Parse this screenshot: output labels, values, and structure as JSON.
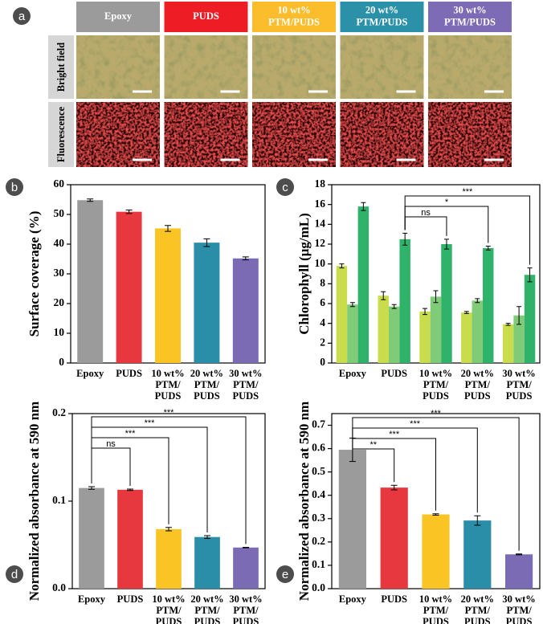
{
  "figure_a": {
    "label": "a",
    "columns": [
      {
        "lines": [
          "Epoxy"
        ],
        "color": "#9b9b9b"
      },
      {
        "lines": [
          "PUDS"
        ],
        "color": "#ee1c25"
      },
      {
        "lines": [
          "10 wt%",
          "PTM/PUDS"
        ],
        "color": "#fbbd2c"
      },
      {
        "lines": [
          "20 wt%",
          "PTM/PUDS"
        ],
        "color": "#2a91a8"
      },
      {
        "lines": [
          "30 wt%",
          "PTM/PUDS"
        ],
        "color": "#7d6bb5"
      }
    ],
    "rows": [
      "Bright field",
      "Fluorescence"
    ]
  },
  "chart_data": [
    {
      "type": "bar",
      "label": "b",
      "y_label": "Surface coverage (%)",
      "categories": [
        [
          "Epoxy"
        ],
        [
          "PUDS"
        ],
        [
          "10 wt%",
          "PTM/",
          "PUDS"
        ],
        [
          "20 wt%",
          "PTM/",
          "PUDS"
        ],
        [
          "30 wt%",
          "PTM/",
          "PUDS"
        ]
      ],
      "values": [
        54.8,
        50.9,
        45.3,
        40.5,
        35.2
      ],
      "errors": [
        0.4,
        0.6,
        1.0,
        1.3,
        0.5
      ],
      "colors": [
        "#9b9b9b",
        "#e8383f",
        "#fbc425",
        "#2a8ea8",
        "#7b6bb5"
      ],
      "ylim": [
        0,
        60
      ],
      "yticks": [
        0,
        10,
        20,
        30,
        40,
        50,
        60
      ]
    },
    {
      "type": "grouped_bar",
      "label": "c",
      "y_label": "Chlorophyll (μg/mL)",
      "categories": [
        [
          "Epoxy"
        ],
        [
          "PUDS"
        ],
        [
          "10 wt%",
          "PTM/",
          "PUDS"
        ],
        [
          "20 wt%",
          "PTM/",
          "PUDS"
        ],
        [
          "30 wt%",
          "PTM/",
          "PUDS"
        ]
      ],
      "series": [
        {
          "color": "#c9dc4c",
          "values": [
            9.8,
            6.8,
            5.2,
            5.1,
            3.9
          ],
          "errors": [
            0.2,
            0.4,
            0.3,
            0.1,
            0.1
          ]
        },
        {
          "color": "#7fcb78",
          "values": [
            5.9,
            5.7,
            6.7,
            6.3,
            4.8
          ],
          "errors": [
            0.2,
            0.2,
            0.6,
            0.2,
            0.9
          ]
        },
        {
          "color": "#2fb36a",
          "values": [
            15.8,
            12.5,
            12.0,
            11.6,
            8.9
          ],
          "errors": [
            0.4,
            0.6,
            0.5,
            0.2,
            0.7
          ]
        }
      ],
      "ylim": [
        0,
        18
      ],
      "yticks": [
        0,
        2,
        4,
        6,
        8,
        10,
        12,
        14,
        16,
        18
      ],
      "significance": [
        {
          "from": 1,
          "to": 2,
          "label": "ns"
        },
        {
          "from": 1,
          "to": 3,
          "label": "*"
        },
        {
          "from": 1,
          "to": 4,
          "label": "***"
        }
      ]
    },
    {
      "type": "bar",
      "label": "d",
      "y_label": "Normalized absorbance at 590 nm",
      "categories": [
        [
          "Epoxy"
        ],
        [
          "PUDS"
        ],
        [
          "10 wt%",
          "PTM/",
          "PUDS"
        ],
        [
          "20 wt%",
          "PTM/",
          "PUDS"
        ],
        [
          "30 wt%",
          "PTM/",
          "PUDS"
        ]
      ],
      "values": [
        0.115,
        0.113,
        0.068,
        0.059,
        0.047
      ],
      "errors": [
        0.0015,
        0.0008,
        0.002,
        0.0015,
        0.0003
      ],
      "colors": [
        "#9b9b9b",
        "#e8383f",
        "#fbc425",
        "#2a8ea8",
        "#7b6bb5"
      ],
      "ylim": [
        0,
        0.2
      ],
      "yticks": [
        {
          "value": 0,
          "label": "0.0"
        },
        0.1,
        0.2
      ],
      "significance": [
        {
          "from": 0,
          "to": 1,
          "label": "ns"
        },
        {
          "from": 0,
          "to": 2,
          "label": "***"
        },
        {
          "from": 0,
          "to": 3,
          "label": "***"
        },
        {
          "from": 0,
          "to": 4,
          "label": "***"
        }
      ]
    },
    {
      "type": "bar",
      "label": "e",
      "y_label": "Normalized absorbance at 590 nm",
      "categories": [
        [
          "Epoxy"
        ],
        [
          "PUDS"
        ],
        [
          "10 wt%",
          "PTM/",
          "PUDS"
        ],
        [
          "20 wt%",
          "PTM/",
          "PUDS"
        ],
        [
          "30 wt%",
          "PTM/",
          "PUDS"
        ]
      ],
      "values": [
        0.595,
        0.433,
        0.318,
        0.292,
        0.147
      ],
      "errors": [
        0.05,
        0.01,
        0.003,
        0.02,
        0.002
      ],
      "colors": [
        "#9b9b9b",
        "#e8383f",
        "#fbc425",
        "#2a8ea8",
        "#7b6bb5"
      ],
      "ylim": [
        0,
        0.75
      ],
      "yticks": [
        {
          "value": 0,
          "label": "0.0"
        },
        0.1,
        0.2,
        0.3,
        0.4,
        0.5,
        0.6,
        0.7
      ],
      "significance": [
        {
          "from": 0,
          "to": 1,
          "label": "**"
        },
        {
          "from": 0,
          "to": 2,
          "label": "***"
        },
        {
          "from": 0,
          "to": 3,
          "label": "***"
        },
        {
          "from": 0,
          "to": 4,
          "label": "***"
        }
      ]
    }
  ]
}
